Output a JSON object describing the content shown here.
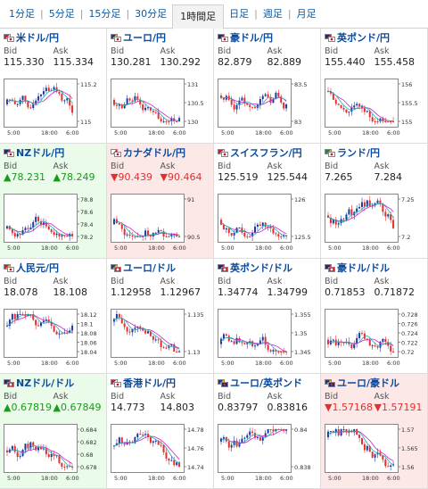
{
  "tabs": [
    {
      "label": "1分足",
      "active": false
    },
    {
      "label": "5分足",
      "active": false
    },
    {
      "label": "15分足",
      "active": false
    },
    {
      "label": "30分足",
      "active": false
    },
    {
      "label": "1時間足",
      "active": true
    },
    {
      "label": "日足",
      "active": false
    },
    {
      "label": "週足",
      "active": false
    },
    {
      "label": "月足",
      "active": false
    }
  ],
  "labels": {
    "bid": "Bid",
    "ask": "Ask"
  },
  "colors": {
    "accent": "#0a5aa5",
    "up": "#1a9a1a",
    "down": "#e03030",
    "candle_up": "#1a3aa0",
    "candle_down": "#e03030",
    "ma": "#d020d0",
    "ma2": "#20b0b0"
  },
  "pairs": [
    {
      "name": "米ドル/円",
      "flags": [
        "us",
        "jp"
      ],
      "bid": "115.330",
      "ask": "115.334",
      "trend": "",
      "ticks": [
        "115.2",
        "115"
      ],
      "xticks": [
        "5:00",
        "18:00",
        "6:00"
      ]
    },
    {
      "name": "ユーロ/円",
      "flags": [
        "eu",
        "jp"
      ],
      "bid": "130.281",
      "ask": "130.292",
      "trend": "",
      "ticks": [
        "131",
        "130.5",
        "130"
      ],
      "xticks": [
        "5:00",
        "18:00",
        "6:00"
      ]
    },
    {
      "name": "豪ドル/円",
      "flags": [
        "au",
        "jp"
      ],
      "bid": "82.879",
      "ask": "82.889",
      "trend": "",
      "ticks": [
        "83.5",
        "83"
      ],
      "xticks": [
        "5:00",
        "18:00",
        "6:00"
      ]
    },
    {
      "name": "英ポンド/円",
      "flags": [
        "gb",
        "jp"
      ],
      "bid": "155.440",
      "ask": "155.458",
      "trend": "",
      "ticks": [
        "156",
        "155.5",
        "155"
      ],
      "xticks": [
        "5:00",
        "18:00",
        "6:00"
      ]
    },
    {
      "name": "NZドル/円",
      "flags": [
        "nz",
        "jp"
      ],
      "bid": "▲78.231",
      "ask": "▲78.249",
      "trend": "up",
      "ticks": [
        "78.8",
        "78.6",
        "78.4",
        "78.2"
      ],
      "xticks": [
        "5:00",
        "18:00",
        "6:00"
      ]
    },
    {
      "name": "カナダドル/円",
      "flags": [
        "ca",
        "jp"
      ],
      "bid": "▼90.439",
      "ask": "▼90.464",
      "trend": "down",
      "ticks": [
        "91",
        "90.5"
      ],
      "xticks": [
        "5:00",
        "18:00",
        "6:00"
      ]
    },
    {
      "name": "スイスフラン/円",
      "flags": [
        "ch",
        "jp"
      ],
      "bid": "125.519",
      "ask": "125.544",
      "trend": "",
      "ticks": [
        "126",
        "125.5"
      ],
      "xticks": [
        "5:00",
        "18:00",
        "6:00"
      ]
    },
    {
      "name": "ランド/円",
      "flags": [
        "za",
        "jp"
      ],
      "bid": "7.265",
      "ask": "7.284",
      "trend": "",
      "ticks": [
        "7.25",
        "7.2"
      ],
      "xticks": [
        "5:00",
        "18:00",
        "6:00"
      ]
    },
    {
      "name": "人民元/円",
      "flags": [
        "cn",
        "jp"
      ],
      "bid": "18.078",
      "ask": "18.108",
      "trend": "",
      "ticks": [
        "18.12",
        "18.1",
        "18.08",
        "18.06",
        "18.04"
      ],
      "xticks": [
        "5:00",
        "18:00",
        "6:00"
      ]
    },
    {
      "name": "ユーロ/ドル",
      "flags": [
        "eu",
        "us"
      ],
      "bid": "1.12958",
      "ask": "1.12967",
      "trend": "",
      "ticks": [
        "1.135",
        "1.13"
      ],
      "xticks": [
        "5:00",
        "18:00",
        "6:00"
      ]
    },
    {
      "name": "英ポンド/ドル",
      "flags": [
        "gb",
        "us"
      ],
      "bid": "1.34774",
      "ask": "1.34799",
      "trend": "",
      "ticks": [
        "1.355",
        "1.35",
        "1.345"
      ],
      "xticks": [
        "5:00",
        "18:00",
        "6:00"
      ]
    },
    {
      "name": "豪ドル/ドル",
      "flags": [
        "au",
        "us"
      ],
      "bid": "0.71853",
      "ask": "0.71872",
      "trend": "",
      "ticks": [
        "0.728",
        "0.726",
        "0.724",
        "0.722",
        "0.72"
      ],
      "xticks": [
        "5:00",
        "18:00",
        "6:00"
      ]
    },
    {
      "name": "NZドル/ドル",
      "flags": [
        "nz",
        "us"
      ],
      "bid": "▲0.67819",
      "ask": "▲0.67849",
      "trend": "up",
      "ticks": [
        "0.684",
        "0.682",
        "0.68",
        "0.678"
      ],
      "xticks": [
        "5:00",
        "18:00",
        "6:00"
      ]
    },
    {
      "name": "香港ドル/円",
      "flags": [
        "hk",
        "jp"
      ],
      "bid": "14.773",
      "ask": "14.803",
      "trend": "",
      "ticks": [
        "14.78",
        "14.76",
        "14.74"
      ],
      "xticks": [
        "5:00",
        "18:00",
        "6:00"
      ]
    },
    {
      "name": "ユーロ/英ポンド",
      "flags": [
        "eu",
        "gb"
      ],
      "bid": "0.83797",
      "ask": "0.83816",
      "trend": "",
      "ticks": [
        "0.84",
        "0.838"
      ],
      "xticks": [
        "5:00",
        "18:00",
        "6:00"
      ]
    },
    {
      "name": "ユーロ/豪ドル",
      "flags": [
        "eu",
        "au"
      ],
      "bid": "▼1.57168",
      "ask": "▼1.57191",
      "trend": "down",
      "ticks": [
        "1.57",
        "1.565",
        "1.56"
      ],
      "xticks": [
        "5:00",
        "18:00",
        "6:00"
      ]
    }
  ]
}
